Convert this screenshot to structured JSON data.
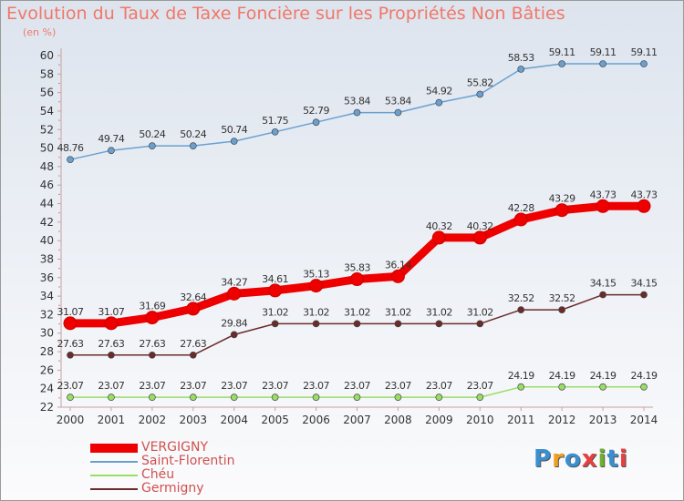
{
  "title": "Evolution du Taux de Taxe Foncière sur les Propriétés Non Bâties",
  "unit": "(en %)",
  "logo_text": "Proxiti",
  "chart_data": {
    "type": "line",
    "title": "Evolution du Taux de Taxe Foncière sur les Propriétés Non Bâties",
    "ylabel": "(en %)",
    "xlabel": "",
    "x": [
      "2000",
      "2001",
      "2002",
      "2003",
      "2004",
      "2005",
      "2006",
      "2007",
      "2008",
      "2009",
      "2010",
      "2011",
      "2012",
      "2013",
      "2014"
    ],
    "ylim": [
      22,
      60
    ],
    "yticks": [
      "22",
      "24",
      "26",
      "28",
      "30",
      "32",
      "34",
      "36",
      "38",
      "40",
      "42",
      "44",
      "46",
      "48",
      "50",
      "52",
      "54",
      "56",
      "58",
      "60"
    ],
    "grid": false,
    "legend": "bottom-left",
    "series": [
      {
        "name": "VERGIGNY",
        "color": "#ee0000",
        "values": [
          31.07,
          31.07,
          31.69,
          32.64,
          34.27,
          34.61,
          35.13,
          35.83,
          36.14,
          40.32,
          40.32,
          42.28,
          43.29,
          43.73,
          43.73
        ],
        "labels": [
          "31.07",
          "31.07",
          "31.69",
          "32.64",
          "34.27",
          "34.61",
          "35.13",
          "35.83",
          "36.14",
          "40.32",
          "40.32",
          "42.28",
          "43.29",
          "43.73",
          "43.73"
        ]
      },
      {
        "name": "Saint-Florentin",
        "color": "#6aa0d0",
        "values": [
          48.76,
          49.74,
          50.24,
          50.24,
          50.74,
          51.75,
          52.79,
          53.84,
          53.84,
          54.92,
          55.82,
          58.53,
          59.11,
          59.11,
          59.11
        ],
        "labels": [
          "48.76",
          "49.74",
          "50.24",
          "50.24",
          "50.74",
          "51.75",
          "52.79",
          "53.84",
          "53.84",
          "54.92",
          "55.82",
          "58.53",
          "59.11",
          "59.11",
          "59.11"
        ]
      },
      {
        "name": "Chéu",
        "color": "#99dd66",
        "values": [
          23.07,
          23.07,
          23.07,
          23.07,
          23.07,
          23.07,
          23.07,
          23.07,
          23.07,
          23.07,
          23.07,
          24.19,
          24.19,
          24.19,
          24.19
        ],
        "labels": [
          "23.07",
          "23.07",
          "23.07",
          "23.07",
          "23.07",
          "23.07",
          "23.07",
          "23.07",
          "23.07",
          "23.07",
          "23.07",
          "24.19",
          "24.19",
          "24.19",
          "24.19"
        ]
      },
      {
        "name": "Germigny",
        "color": "#6b2b2b",
        "values": [
          27.63,
          27.63,
          27.63,
          27.63,
          29.84,
          31.02,
          31.02,
          31.02,
          31.02,
          31.02,
          31.02,
          32.52,
          32.52,
          34.15,
          34.15
        ],
        "labels": [
          "27.63",
          "27.63",
          "27.63",
          "27.63",
          "29.84",
          "31.02",
          "31.02",
          "31.02",
          "31.02",
          "31.02",
          "31.02",
          "32.52",
          "32.52",
          "34.15",
          "34.15"
        ]
      }
    ]
  }
}
